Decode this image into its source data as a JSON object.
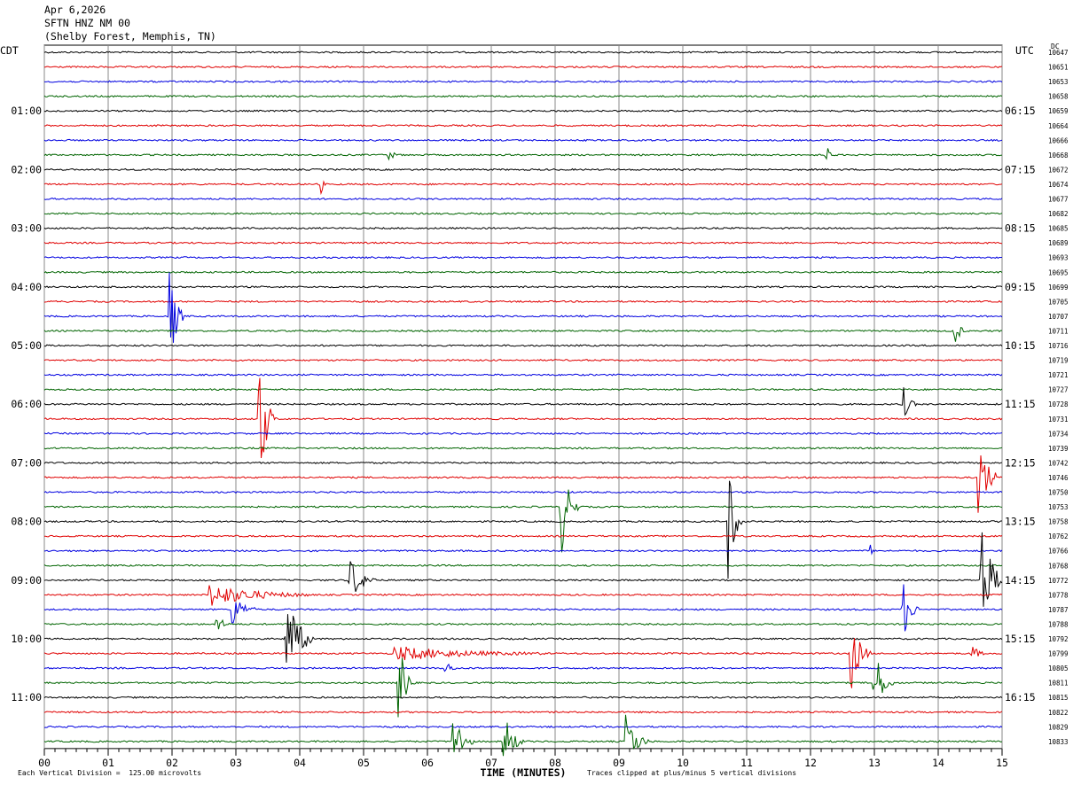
{
  "header": {
    "date": "Apr 6,2026",
    "station": "SFTN HNZ NM 00",
    "location": "(Shelby Forest, Memphis, TN)"
  },
  "left_tz": "CDT",
  "right_tz": "UTC",
  "dc_label": "DC",
  "footer": {
    "scale_note": "Each Vertical Division =  125.00 microvolts",
    "xlabel": "TIME (MINUTES)",
    "clip_note": "Traces clipped at plus/minus 5 vertical divisions"
  },
  "chart_data": {
    "type": "line",
    "title": "",
    "xlabel": "TIME (MINUTES)",
    "xlim": [
      0,
      15
    ],
    "x_ticks": [
      "00",
      "01",
      "02",
      "03",
      "04",
      "05",
      "06",
      "07",
      "08",
      "09",
      "10",
      "11",
      "12",
      "13",
      "14",
      "15"
    ],
    "grid": true,
    "trace_colors": [
      "#000000",
      "#e00000",
      "#0000e0",
      "#006400"
    ],
    "left_hour_labels": [
      "01:00",
      "02:00",
      "03:00",
      "04:00",
      "05:00",
      "06:00",
      "07:00",
      "08:00",
      "09:00",
      "10:00",
      "11:00"
    ],
    "right_hour_labels": [
      "06:15",
      "07:15",
      "08:15",
      "09:15",
      "10:15",
      "11:15",
      "12:15",
      "13:15",
      "14:15",
      "15:15",
      "16:15"
    ],
    "dc_offsets": [
      "10647",
      "10651",
      "10653",
      "10658",
      "10659",
      "10664",
      "10666",
      "10668",
      "10672",
      "10674",
      "10677",
      "10682",
      "10685",
      "10689",
      "10693",
      "10695",
      "10699",
      "10705",
      "10707",
      "10711",
      "10716",
      "10719",
      "10721",
      "10727",
      "10728",
      "10731",
      "10734",
      "10739",
      "10742",
      "10746",
      "10750",
      "10753",
      "10758",
      "10762",
      "10766",
      "10768",
      "10772",
      "10778",
      "10787",
      "10788",
      "10792",
      "10799",
      "10805",
      "10811",
      "10815",
      "10822",
      "10829",
      "10833"
    ],
    "events": [
      {
        "trace": 9,
        "minute": 4.35,
        "amp": 0.6,
        "dur": 0.05
      },
      {
        "trace": 7,
        "minute": 5.4,
        "amp": 0.3,
        "dur": 0.2
      },
      {
        "trace": 7,
        "minute": 12.25,
        "amp": 0.6,
        "dur": 0.15
      },
      {
        "trace": 18,
        "minute": 1.97,
        "amp": 4.5,
        "dur": 0.2
      },
      {
        "trace": 19,
        "minute": 14.27,
        "amp": 1.2,
        "dur": 0.15
      },
      {
        "trace": 24,
        "minute": 13.45,
        "amp": 1.3,
        "dur": 0.2
      },
      {
        "trace": 25,
        "minute": 3.38,
        "amp": 4.5,
        "dur": 0.25
      },
      {
        "trace": 29,
        "minute": 14.65,
        "amp": 3.0,
        "dur": 0.3
      },
      {
        "trace": 31,
        "minute": 8.1,
        "amp": 3.2,
        "dur": 0.3
      },
      {
        "trace": 32,
        "minute": 10.72,
        "amp": 4.5,
        "dur": 0.2
      },
      {
        "trace": 34,
        "minute": 12.95,
        "amp": 0.4,
        "dur": 0.05
      },
      {
        "trace": 36,
        "minute": 4.8,
        "amp": 1.6,
        "dur": 0.4
      },
      {
        "trace": 36,
        "minute": 14.68,
        "amp": 4.5,
        "dur": 0.35
      },
      {
        "trace": 37,
        "minute": 2.6,
        "amp": 0.8,
        "dur": 1.6
      },
      {
        "trace": 38,
        "minute": 2.95,
        "amp": 1.3,
        "dur": 0.35
      },
      {
        "trace": 38,
        "minute": 13.45,
        "amp": 2.2,
        "dur": 0.25
      },
      {
        "trace": 39,
        "minute": 2.7,
        "amp": 0.8,
        "dur": 0.2
      },
      {
        "trace": 40,
        "minute": 3.8,
        "amp": 3.2,
        "dur": 0.45
      },
      {
        "trace": 41,
        "minute": 5.5,
        "amp": 0.5,
        "dur": 2.4
      },
      {
        "trace": 41,
        "minute": 12.65,
        "amp": 2.5,
        "dur": 0.3
      },
      {
        "trace": 41,
        "minute": 14.55,
        "amp": 0.5,
        "dur": 0.2
      },
      {
        "trace": 42,
        "minute": 6.3,
        "amp": 0.4,
        "dur": 0.2
      },
      {
        "trace": 43,
        "minute": 5.57,
        "amp": 2.5,
        "dur": 0.25
      },
      {
        "trace": 43,
        "minute": 13.0,
        "amp": 2.5,
        "dur": 0.3
      },
      {
        "trace": 47,
        "minute": 6.42,
        "amp": 2.2,
        "dur": 0.3
      },
      {
        "trace": 47,
        "minute": 7.2,
        "amp": 2.2,
        "dur": 0.3
      },
      {
        "trace": 47,
        "minute": 9.12,
        "amp": 2.0,
        "dur": 0.35
      }
    ]
  }
}
